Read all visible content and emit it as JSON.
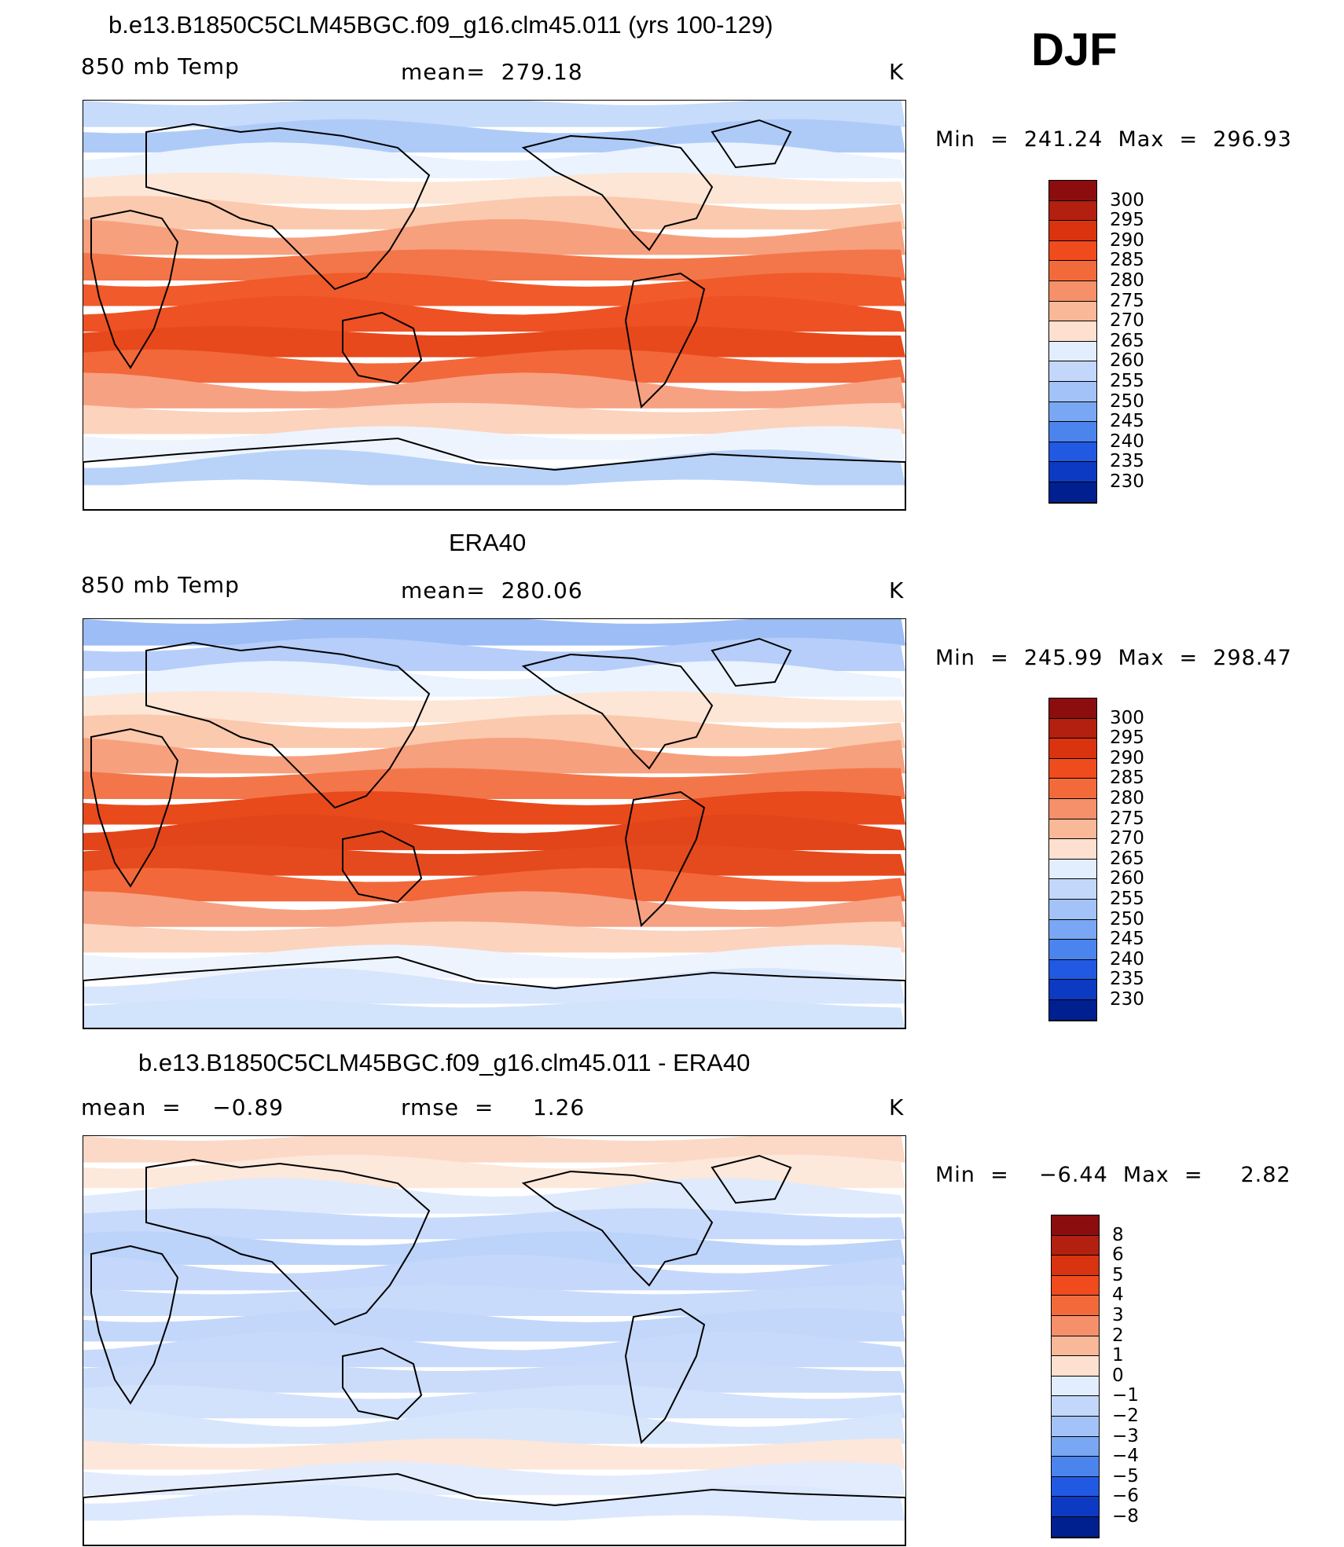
{
  "season": "DJF",
  "panels": [
    {
      "title": "b.e13.B1850C5CLM45BGC.f09_g16.clm45.011 (yrs 100-129)",
      "left_label": "850 mb Temp",
      "center_label": "mean=  279.18",
      "unit": "K",
      "minmax": "Min  =  241.24  Max  =  296.93",
      "bands": [
        "#c7dbfb",
        "#aecbf8",
        "#eaf3fe",
        "#fde6d6",
        "#fbc9ad",
        "#f6a07e",
        "#f3764a",
        "#f15a2a",
        "#ee5124",
        "#e7491c",
        "#f2683a",
        "#f7a183",
        "#fcd3bd",
        "#eef4fe",
        "#b9d2f8",
        "#ffffff"
      ]
    },
    {
      "title": "ERA40",
      "left_label": "850 mb Temp",
      "center_label": "mean=  280.06",
      "unit": "K",
      "minmax": "Min  =  245.99  Max  =  298.47",
      "bands": [
        "#9cbdf6",
        "#b6cef9",
        "#eaf3fe",
        "#fde6d6",
        "#fbc9ad",
        "#f6a07e",
        "#f3764a",
        "#e84a1c",
        "#e2451a",
        "#e44a1d",
        "#f2683a",
        "#f7a183",
        "#fcd3bd",
        "#eef4fe",
        "#d7e6fc",
        "#d2e3fc"
      ]
    },
    {
      "title": "b.e13.B1850C5CLM45BGC.f09_g16.clm45.011 - ERA40",
      "left_label": "mean  =    −0.89",
      "center_label": "rmse  =     1.26",
      "unit": "K",
      "minmax": "Min  =    −6.44  Max  =     2.82",
      "bands": [
        "#fcd9c6",
        "#fde8dc",
        "#dfeafd",
        "#c7dafb",
        "#bcd3fa",
        "#c5d8fb",
        "#c9dbfb",
        "#c3d7fa",
        "#c8dafb",
        "#cbdcfb",
        "#d2e2fc",
        "#d8e6fc",
        "#fde7da",
        "#e2ecfd",
        "#dbe8fd",
        "#ffffff"
      ]
    }
  ],
  "colorbars": [
    {
      "labels": [
        "300",
        "295",
        "290",
        "285",
        "280",
        "275",
        "270",
        "265",
        "260",
        "255",
        "250",
        "245",
        "240",
        "235",
        "230"
      ],
      "colors": [
        "#8b0d0d",
        "#b3200f",
        "#d9330f",
        "#ef4b1d",
        "#f26a3a",
        "#f5906b",
        "#f9b898",
        "#fde0cf",
        "#e2edfd",
        "#c3d7fa",
        "#a3c2f7",
        "#7aa7f3",
        "#4c84ee",
        "#2259e2",
        "#0d3ac2",
        "#00208f"
      ]
    },
    {
      "labels": [
        "300",
        "295",
        "290",
        "285",
        "280",
        "275",
        "270",
        "265",
        "260",
        "255",
        "250",
        "245",
        "240",
        "235",
        "230"
      ],
      "colors": [
        "#8b0d0d",
        "#b3200f",
        "#d9330f",
        "#ef4b1d",
        "#f26a3a",
        "#f5906b",
        "#f9b898",
        "#fde0cf",
        "#e2edfd",
        "#c3d7fa",
        "#a3c2f7",
        "#7aa7f3",
        "#4c84ee",
        "#2259e2",
        "#0d3ac2",
        "#00208f"
      ]
    },
    {
      "labels": [
        "8",
        "6",
        "5",
        "4",
        "3",
        "2",
        "1",
        "0",
        "−1",
        "−2",
        "−3",
        "−4",
        "−5",
        "−6",
        "−8"
      ],
      "colors": [
        "#8b0d0d",
        "#b3200f",
        "#d9330f",
        "#ef4b1d",
        "#f26a3a",
        "#f5906b",
        "#f9b898",
        "#fde0cf",
        "#e2edfd",
        "#c3d7fa",
        "#a3c2f7",
        "#7aa7f3",
        "#4c84ee",
        "#2259e2",
        "#0d3ac2",
        "#00208f"
      ]
    }
  ]
}
